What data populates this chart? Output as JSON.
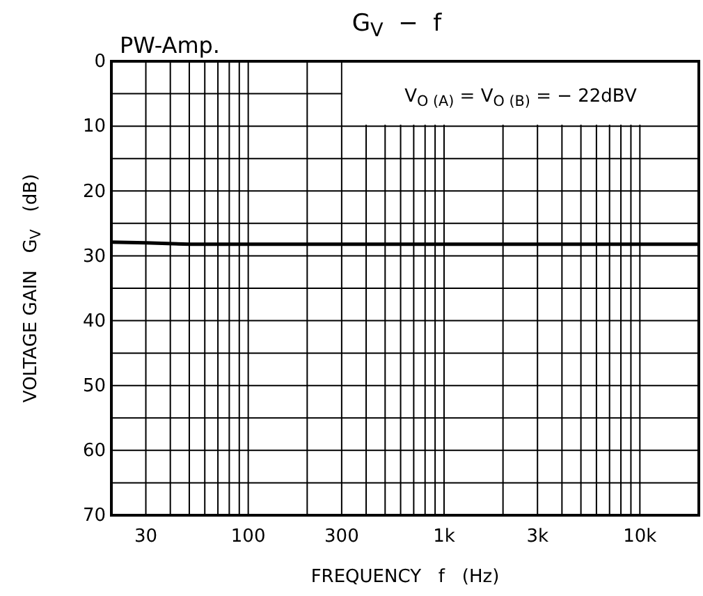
{
  "chart_data": {
    "type": "line",
    "title": "G$_{V}$  −  f",
    "subtitle": "PW-Amp.",
    "xlabel": "FREQUENCY   f   (Hz)",
    "ylabel": "VOLTAGE GAIN   G$_{V}$   (dB)",
    "annotations": [
      "V$_{O (A)}$ = V$_{O (B)}$ = − 22dBV"
    ],
    "log": "x",
    "grid": true,
    "marker": "none",
    "line_style": "solid",
    "xlim": [
      20,
      20000
    ],
    "ylim": [
      70,
      0
    ],
    "xticks": [
      {
        "value": 20,
        "label": null
      },
      30,
      {
        "value": 40,
        "label": null
      },
      {
        "value": 50,
        "label": null
      },
      {
        "value": 60,
        "label": null
      },
      {
        "value": 70,
        "label": null
      },
      {
        "value": 80,
        "label": null
      },
      {
        "value": 90,
        "label": null
      },
      100,
      {
        "value": 200,
        "label": null
      },
      300,
      {
        "value": 400,
        "label": null
      },
      {
        "value": 500,
        "label": null
      },
      {
        "value": 600,
        "label": null
      },
      {
        "value": 700,
        "label": null
      },
      {
        "value": 800,
        "label": null
      },
      {
        "value": 900,
        "label": null
      },
      {
        "value": 1000,
        "label": "1k"
      },
      {
        "value": 2000,
        "label": null
      },
      {
        "value": 3000,
        "label": "3k"
      },
      {
        "value": 4000,
        "label": null
      },
      {
        "value": 5000,
        "label": null
      },
      {
        "value": 6000,
        "label": null
      },
      {
        "value": 7000,
        "label": null
      },
      {
        "value": 8000,
        "label": null
      },
      {
        "value": 9000,
        "label": null
      },
      {
        "value": 10000,
        "label": "10k"
      },
      {
        "value": 20000,
        "label": null
      }
    ],
    "yticks": [
      0,
      {
        "value": 5,
        "label": null
      },
      10,
      {
        "value": 15,
        "label": null
      },
      20,
      {
        "value": 25,
        "label": null
      },
      30,
      {
        "value": 35,
        "label": null
      },
      40,
      {
        "value": 45,
        "label": null
      },
      50,
      {
        "value": 55,
        "label": null
      },
      60,
      {
        "value": 65,
        "label": null
      },
      70
    ],
    "series": [
      {
        "color": "#000000",
        "x": [
          20,
          30,
          50,
          100,
          1000,
          10000,
          20000
        ],
        "values": [
          27.9,
          28.0,
          28.2,
          28.2,
          28.2,
          28.2,
          28.2
        ]
      }
    ]
  }
}
